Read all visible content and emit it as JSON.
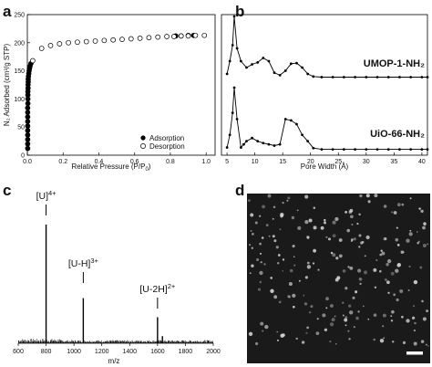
{
  "panels": {
    "a": "a",
    "b": "b",
    "c": "c",
    "d": "d"
  },
  "chart_data": [
    {
      "id": "a",
      "type": "scatter",
      "xlabel": "Relative Pressure (P/P",
      "xlabel_sub": "0",
      "xlabel_end": ")",
      "ylabel": "N₂ Adsorbed (cm³/g STP)",
      "xlim": [
        0,
        1.05
      ],
      "ylim": [
        0,
        250
      ],
      "xticks": [
        "0.0",
        "0.2",
        "0.4",
        "0.6",
        "0.8",
        "1.0"
      ],
      "yticks": [
        "0",
        "50",
        "100",
        "150",
        "200",
        "250"
      ],
      "legend_position": "bottom-right",
      "series": [
        {
          "name": "Adsorption",
          "marker": "filled-circle",
          "x": [
            0.002,
            0.002,
            0.002,
            0.002,
            0.002,
            0.002,
            0.002,
            0.002,
            0.002,
            0.002,
            0.003,
            0.003,
            0.003,
            0.003,
            0.004,
            0.004,
            0.005,
            0.005,
            0.006,
            0.008,
            0.01,
            0.012,
            0.015,
            0.02,
            0.83,
            0.86,
            0.9,
            0.93
          ],
          "y": [
            12,
            20,
            28,
            36,
            44,
            52,
            60,
            68,
            76,
            84,
            92,
            100,
            107,
            113,
            119,
            125,
            130,
            135,
            140,
            145,
            150,
            154,
            158,
            163,
            212,
            212,
            213,
            213
          ]
        },
        {
          "name": "Desorption",
          "marker": "open-circle",
          "x": [
            0.03,
            0.08,
            0.13,
            0.18,
            0.23,
            0.28,
            0.33,
            0.38,
            0.43,
            0.48,
            0.53,
            0.58,
            0.63,
            0.68,
            0.73,
            0.78,
            0.82,
            0.86,
            0.9,
            0.94,
            0.99
          ],
          "y": [
            168,
            190,
            195,
            198,
            200,
            201,
            202,
            203,
            204,
            205,
            206,
            207,
            208,
            209,
            210,
            211,
            211,
            212,
            212,
            213,
            213
          ]
        }
      ]
    },
    {
      "id": "b",
      "type": "line",
      "xlabel": "Pore Width (Å)",
      "xlim": [
        4,
        41
      ],
      "xticks": [
        "5",
        "10",
        "15",
        "20",
        "25",
        "30",
        "35",
        "40"
      ],
      "series": [
        {
          "name": "UMOP-1-NH₂",
          "x": [
            5.0,
            5.5,
            6.0,
            6.3,
            6.8,
            7.5,
            8.5,
            9.5,
            10.5,
            11.5,
            12.5,
            13.5,
            14.5,
            15.5,
            16.5,
            17.5,
            18.5,
            19.5,
            20.5,
            22,
            24,
            26,
            28,
            30,
            32,
            34,
            36,
            38,
            40,
            41
          ],
          "y": [
            0.1,
            0.3,
            0.55,
            1.0,
            0.5,
            0.3,
            0.2,
            0.25,
            0.28,
            0.35,
            0.3,
            0.12,
            0.08,
            0.15,
            0.26,
            0.27,
            0.2,
            0.1,
            0.06,
            0.05,
            0.05,
            0.05,
            0.05,
            0.05,
            0.05,
            0.05,
            0.05,
            0.05,
            0.05,
            0.05
          ]
        },
        {
          "name": "UiO-66-NH₂",
          "x": [
            5.0,
            5.5,
            6.0,
            6.3,
            6.8,
            7.5,
            8.0,
            8.5,
            9.5,
            10.5,
            11.5,
            12.5,
            13.5,
            14.5,
            15.5,
            16.5,
            17.5,
            18.5,
            19.5,
            20.5,
            22,
            24,
            26,
            28,
            30,
            32,
            34,
            36,
            38,
            40,
            41
          ],
          "y": [
            0.05,
            0.25,
            0.6,
            1.0,
            0.5,
            0.05,
            0.1,
            0.15,
            0.2,
            0.15,
            0.12,
            0.1,
            0.08,
            0.1,
            0.5,
            0.48,
            0.42,
            0.25,
            0.15,
            0.04,
            0.02,
            0.02,
            0.02,
            0.02,
            0.02,
            0.02,
            0.02,
            0.02,
            0.02,
            0.02,
            0.02
          ]
        }
      ]
    },
    {
      "id": "c",
      "type": "line",
      "xlabel": "m/z",
      "xlim": [
        600,
        2000
      ],
      "xticks": [
        "600",
        "800",
        "1000",
        "1200",
        "1400",
        "1600",
        "1800",
        "2000"
      ],
      "peaks": [
        {
          "x": 800,
          "y": 1.0
        },
        {
          "x": 1067,
          "y": 0.38
        },
        {
          "x": 1600,
          "y": 0.22
        },
        {
          "x": 1635,
          "y": 0.06
        }
      ],
      "annotations": [
        {
          "base": "[U]",
          "sup": "4+",
          "x": 800
        },
        {
          "base": "[U-H]",
          "sup": "3+",
          "x": 1067
        },
        {
          "base": "[U-2H]",
          "sup": "2+",
          "x": 1600
        }
      ]
    }
  ],
  "image_d": {
    "background": "#1a1a1a",
    "particle_color": "#d9d9d9",
    "scale_bar_color": "#ffffff"
  }
}
